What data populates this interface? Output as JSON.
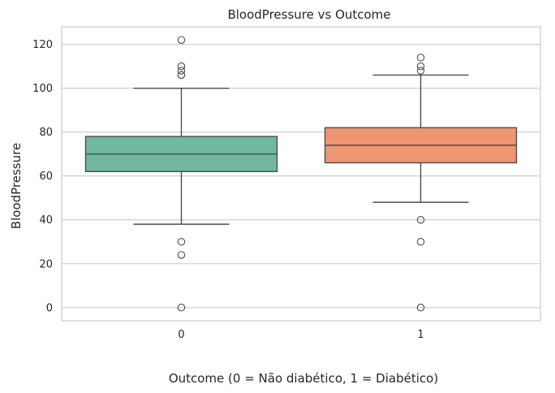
{
  "chart_data": {
    "type": "box",
    "title": "BloodPressure vs Outcome",
    "xlabel": "Outcome (0 = Não diabético, 1 = Diabético)",
    "ylabel": "BloodPressure",
    "ylim": [
      -6,
      128
    ],
    "yticks": [
      0,
      20,
      40,
      60,
      80,
      100,
      120
    ],
    "grid": true,
    "categories": [
      "0",
      "1"
    ],
    "boxes": [
      {
        "category": "0",
        "color": "#72b7a0",
        "whisker_low": 38,
        "q1": 62,
        "median": 70,
        "q3": 78,
        "whisker_high": 100,
        "outliers": [
          0,
          24,
          30,
          106,
          106,
          108,
          110,
          122
        ]
      },
      {
        "category": "1",
        "color": "#ec9672",
        "whisker_low": 48,
        "q1": 66,
        "median": 74,
        "q3": 82,
        "whisker_high": 106,
        "outliers": [
          0,
          30,
          40,
          108,
          110,
          114
        ]
      }
    ]
  }
}
